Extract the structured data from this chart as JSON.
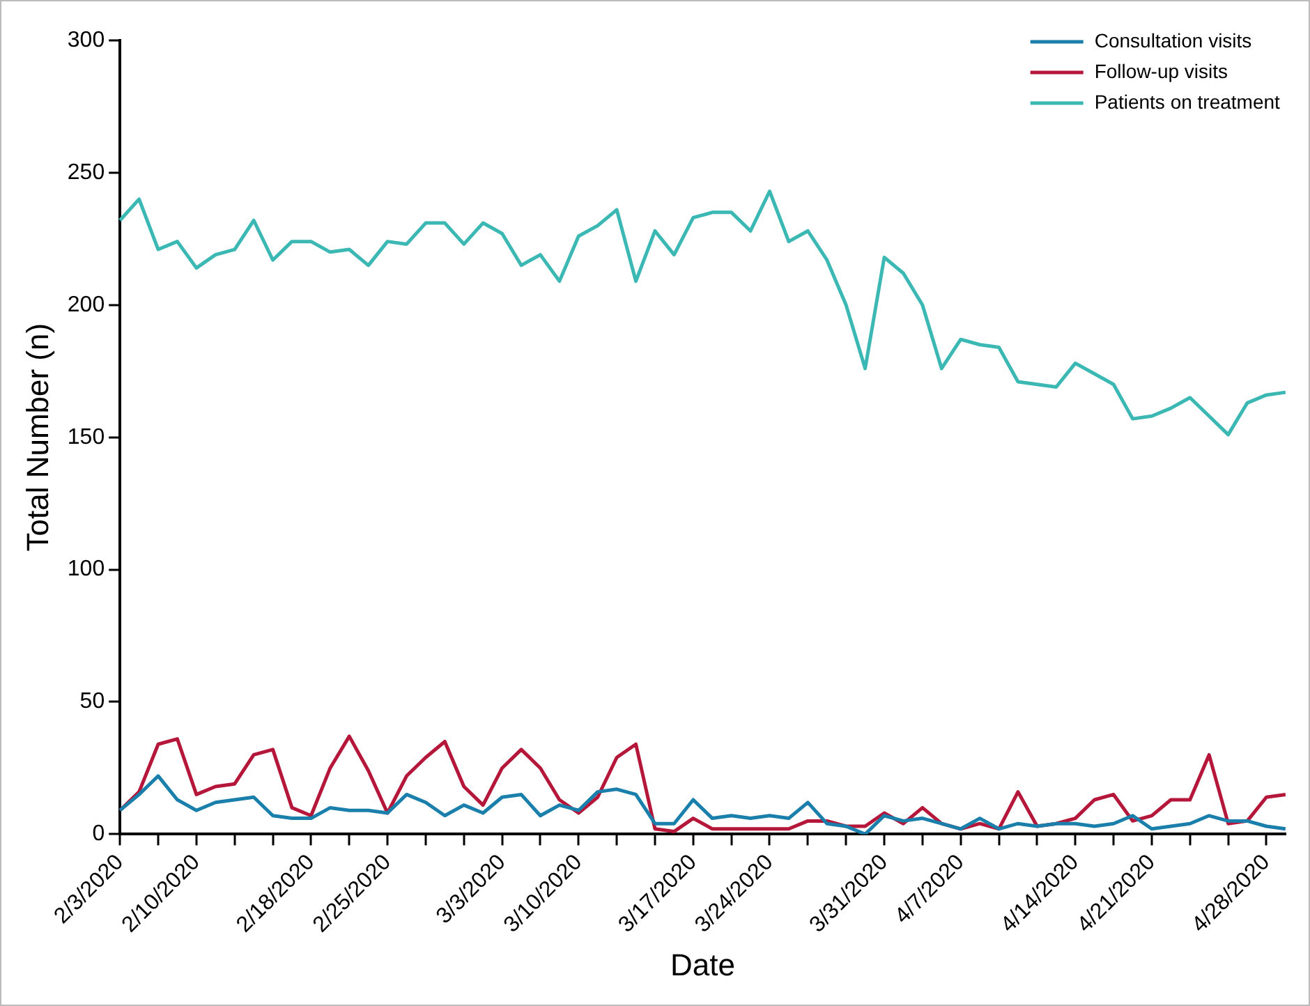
{
  "chart_data": {
    "type": "line",
    "xlabel": "Date",
    "ylabel": "Total Number (n)",
    "categories": [
      "2/3/2020",
      null,
      null,
      null,
      "2/10/2020",
      null,
      null,
      null,
      null,
      null,
      "2/18/2020",
      null,
      null,
      null,
      "2/25/2020",
      null,
      null,
      null,
      null,
      null,
      "3/3/2020",
      null,
      null,
      null,
      "3/10/2020",
      null,
      null,
      null,
      null,
      null,
      "3/17/2020",
      null,
      null,
      null,
      "3/24/2020",
      null,
      null,
      null,
      null,
      null,
      "3/31/2020",
      null,
      null,
      null,
      "4/7/2020",
      null,
      null,
      null,
      null,
      null,
      "4/14/2020",
      null,
      null,
      null,
      "4/21/2020",
      null,
      null,
      null,
      null,
      null,
      "4/28/2020",
      null
    ],
    "series": [
      {
        "name": "Consultation visits",
        "color": "#1a7fab",
        "values": [
          9,
          15,
          22,
          13,
          9,
          12,
          13,
          14,
          7,
          6,
          6,
          10,
          9,
          9,
          8,
          15,
          12,
          7,
          11,
          8,
          14,
          15,
          7,
          11,
          9,
          16,
          17,
          15,
          4,
          4,
          13,
          6,
          7,
          6,
          7,
          6,
          12,
          4,
          3,
          0,
          7,
          5,
          6,
          4,
          2,
          6,
          2,
          4,
          3,
          4,
          4,
          3,
          4,
          7,
          2,
          3,
          4,
          7,
          5,
          5,
          3,
          2
        ]
      },
      {
        "name": "Follow-up visits",
        "color": "#b5173a",
        "values": [
          9,
          16,
          34,
          36,
          15,
          18,
          19,
          30,
          32,
          10,
          7,
          25,
          37,
          24,
          8,
          22,
          29,
          35,
          18,
          11,
          25,
          32,
          25,
          13,
          8,
          14,
          29,
          34,
          2,
          1,
          6,
          2,
          2,
          2,
          2,
          2,
          5,
          5,
          3,
          3,
          8,
          4,
          10,
          4,
          2,
          4,
          2,
          16,
          3,
          4,
          6,
          13,
          15,
          5,
          7,
          13,
          13,
          30,
          4,
          5,
          14,
          15
        ]
      },
      {
        "name": "Patients on treatment",
        "color": "#3bb8b3",
        "values": [
          232,
          240,
          221,
          224,
          214,
          219,
          221,
          232,
          217,
          224,
          224,
          220,
          221,
          215,
          224,
          223,
          231,
          231,
          223,
          231,
          227,
          215,
          219,
          209,
          226,
          230,
          236,
          209,
          228,
          219,
          233,
          235,
          235,
          228,
          243,
          224,
          228,
          217,
          200,
          176,
          218,
          212,
          200,
          176,
          187,
          185,
          184,
          171,
          170,
          169,
          178,
          174,
          170,
          157,
          158,
          161,
          165,
          158,
          151,
          163,
          166,
          167
        ]
      }
    ],
    "ylim": [
      0,
      300
    ],
    "yticks": [
      0,
      50,
      100,
      150,
      200,
      250,
      300
    ],
    "grid": false,
    "legend": "top right",
    "marker": "none",
    "line_style": "solid"
  }
}
